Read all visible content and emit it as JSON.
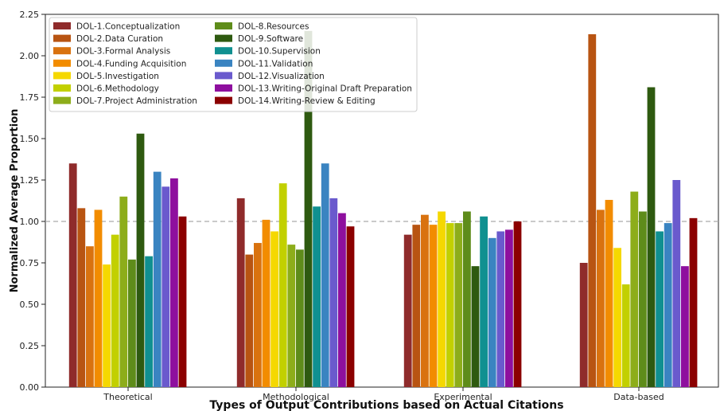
{
  "chart_data": {
    "type": "bar",
    "title": "",
    "xlabel": "Types of Output Contributions based on Actual Citations",
    "ylabel": "Normalized Average Proportion",
    "ylim": [
      0,
      2.25
    ],
    "yticks": [
      "0.00",
      "0.25",
      "0.50",
      "0.75",
      "1.00",
      "1.25",
      "1.50",
      "1.75",
      "2.00",
      "2.25"
    ],
    "reference_line": {
      "value": 1.0,
      "style": "dashed",
      "color": "#aaaaaa"
    },
    "grid": false,
    "legend_position": "top-left",
    "categories": [
      "Theoretical",
      "Methodological",
      "Experimental",
      "Data-based"
    ],
    "series": [
      {
        "name": "DOL-1.Conceptualization",
        "color": "#8f2b2b",
        "values": [
          1.35,
          1.14,
          0.92,
          0.75
        ]
      },
      {
        "name": "DOL-2.Data Curation",
        "color": "#b85412",
        "values": [
          1.08,
          0.8,
          0.98,
          2.13
        ]
      },
      {
        "name": "DOL-3.Formal Analysis",
        "color": "#d9720f",
        "values": [
          0.85,
          0.87,
          1.04,
          1.07
        ]
      },
      {
        "name": "DOL-4.Funding Acquisition",
        "color": "#f28c00",
        "values": [
          1.07,
          1.01,
          0.98,
          1.13
        ]
      },
      {
        "name": "DOL-5.Investigation",
        "color": "#f5d800",
        "values": [
          0.74,
          0.94,
          1.06,
          0.84
        ]
      },
      {
        "name": "DOL-6.Methodology",
        "color": "#c2d000",
        "values": [
          0.92,
          1.23,
          0.99,
          0.62
        ]
      },
      {
        "name": "DOL-7.Project Administration",
        "color": "#8dad1a",
        "values": [
          1.15,
          0.86,
          0.99,
          1.18
        ]
      },
      {
        "name": "DOL-8.Resources",
        "color": "#5e8c1a",
        "values": [
          0.77,
          0.83,
          1.06,
          1.06
        ]
      },
      {
        "name": "DOL-9.Software",
        "color": "#2e5a10",
        "values": [
          1.53,
          2.15,
          0.73,
          1.81
        ]
      },
      {
        "name": "DOL-10.Supervision",
        "color": "#109090",
        "values": [
          0.79,
          1.09,
          1.03,
          0.94
        ]
      },
      {
        "name": "DOL-11.Validation",
        "color": "#3a84c1",
        "values": [
          1.3,
          1.35,
          0.9,
          0.99
        ]
      },
      {
        "name": "DOL-12.Visualization",
        "color": "#6a5acd",
        "values": [
          1.21,
          1.14,
          0.94,
          1.25
        ]
      },
      {
        "name": "DOL-13.Writing-Original Draft Preparation",
        "color": "#8e0f9e",
        "values": [
          1.26,
          1.05,
          0.95,
          0.73
        ]
      },
      {
        "name": "DOL-14.Writing-Review & Editing",
        "color": "#8b0000",
        "values": [
          1.03,
          0.97,
          1.0,
          1.02
        ]
      }
    ]
  }
}
